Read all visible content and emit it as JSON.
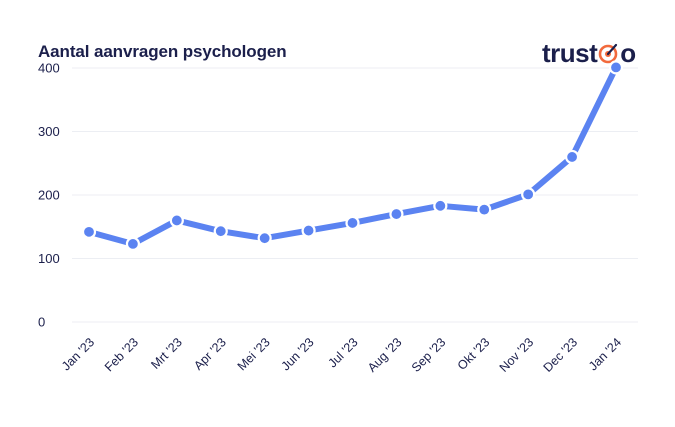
{
  "header": {
    "title": "Aantal aanvragen psychologen",
    "logo": {
      "text_before": "trust",
      "icon": "target-icon",
      "text_after": "o",
      "accent": "#f26a3d"
    }
  },
  "chart_data": {
    "type": "line",
    "title": "Aantal aanvragen psychologen",
    "xlabel": "",
    "ylabel": "",
    "categories": [
      "Jan '23",
      "Feb '23",
      "Mrt '23",
      "Apr '23",
      "Mei '23",
      "Jun '23",
      "Jul '23",
      "Aug '23",
      "Sep '23",
      "Okt '23",
      "Nov '23",
      "Dec '23",
      "Jan '24"
    ],
    "series": [
      {
        "values": [
          142,
          123,
          160,
          143,
          132,
          144,
          156,
          170,
          183,
          177,
          201,
          260,
          401
        ],
        "color": "#5b83f1"
      }
    ],
    "yticks": [
      0,
      100,
      200,
      300,
      400
    ],
    "ylim": [
      0,
      430
    ],
    "grid": true,
    "legend": "none"
  }
}
